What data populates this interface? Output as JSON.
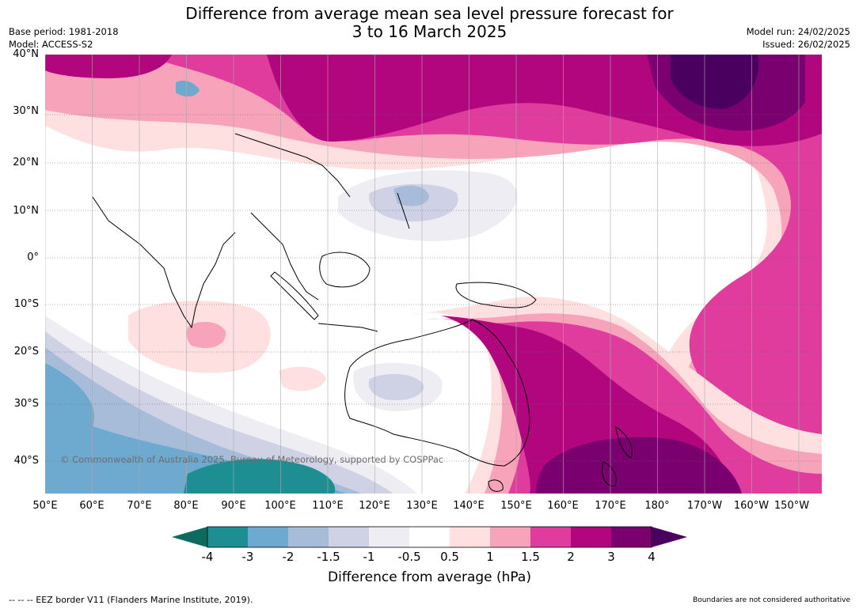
{
  "title_line1": "Difference from average mean sea level pressure forecast for",
  "title_line2": "3 to 16 March 2025",
  "base_period": "Base period: 1981-2018",
  "model": "Model: ACCESS-S2",
  "model_run": "Model run: 24/02/2025",
  "issued": "Issued: 26/02/2025",
  "lat_labels": [
    "40°N",
    "30°N",
    "20°N",
    "10°N",
    "0°",
    "10°S",
    "20°S",
    "30°S",
    "40°S"
  ],
  "lon_labels": [
    "50°E",
    "60°E",
    "70°E",
    "80°E",
    "90°E",
    "100°E",
    "110°E",
    "120°E",
    "130°E",
    "140°E",
    "150°E",
    "160°E",
    "170°E",
    "180°",
    "170°W",
    "160°W",
    "150°W"
  ],
  "copyright": "© Commonwealth of Australia 2025, Bureau of Meteorology, supported by COSPPac",
  "colorbar": {
    "ticks": [
      "-4",
      "-3",
      "-2",
      "-1.5",
      "-1",
      "-0.5",
      "0.5",
      "1",
      "1.5",
      "2",
      "3",
      "4"
    ],
    "colors": [
      "#1d8f92",
      "#6ea9d0",
      "#a7bcd9",
      "#cfd1e5",
      "#efedf4",
      "#ffffff",
      "#fde0df",
      "#f7a3ba",
      "#df3c9e",
      "#b2067e",
      "#7b006f"
    ],
    "extend_low_color": "#0b6b5e",
    "extend_high_color": "#4a005f",
    "label": "Difference from average (hPa)"
  },
  "footer_left": "--  --  -- EEZ border V11 (Flanders Marine Institute, 2019).",
  "footer_right": "Boundaries are not considered authoritative",
  "chart_data": {
    "type": "map",
    "variable": "Difference from average mean sea level pressure",
    "units": "hPa",
    "extent": {
      "lon": [
        50,
        215
      ],
      "lat": [
        -46,
        40
      ]
    },
    "levels": [
      -4,
      -3,
      -2,
      -1.5,
      -1,
      -0.5,
      0.5,
      1,
      1.5,
      2,
      3,
      4
    ],
    "features": [
      {
        "region": "North Pacific near 170°E 35°N",
        "value_range": "3 to 4",
        "description": "Strong positive anomaly centre"
      },
      {
        "region": "Tasman Sea / south of New Zealand",
        "value_range": "3 to 4",
        "description": "Strong positive anomaly"
      },
      {
        "region": "Eastern Australia coast to Coral Sea",
        "value_range": "2 to 3",
        "description": "Positive anomaly"
      },
      {
        "region": "South Pacific band 160°E to 150°W",
        "value_range": "1.5 to 3",
        "description": "Positive anomaly band"
      },
      {
        "region": "China / East Asia",
        "value_range": "2 to 3",
        "description": "Positive anomaly"
      },
      {
        "region": "Southern Indian Ocean 80-110°E 40°S",
        "value_range": "-4 to -3",
        "description": "Negative anomaly"
      },
      {
        "region": "Philippines",
        "value_range": "-1 to -1.5",
        "description": "Weak negative anomaly"
      },
      {
        "region": "Central Australia",
        "value_range": "-0.5 to -1",
        "description": "Weak negative anomaly"
      },
      {
        "region": "Indian Ocean near 80°E 15°S",
        "value_range": "0.5 to 1.5",
        "description": "Weak positive anomaly"
      }
    ]
  }
}
